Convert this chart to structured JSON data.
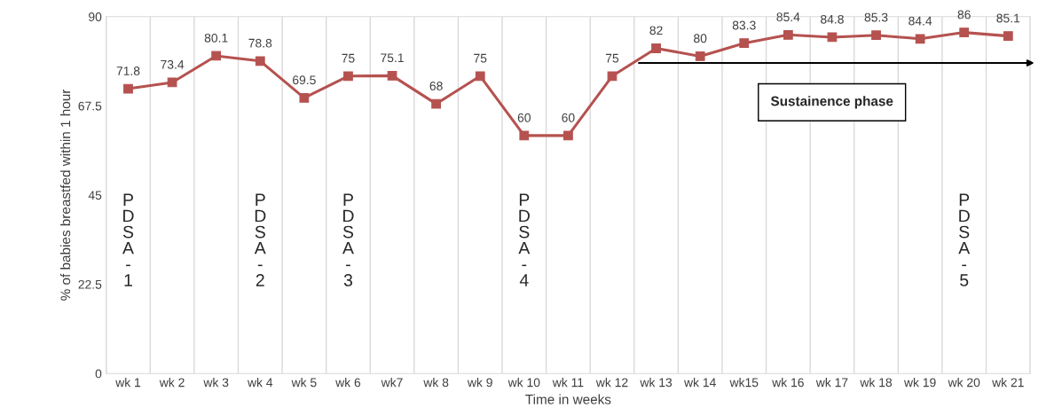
{
  "chart_data": {
    "type": "line",
    "xlabel": "Time in weeks",
    "ylabel": "% of babies breastfed within 1 hour",
    "categories": [
      "wk 1",
      "wk 2",
      "wk 3",
      "wk 4",
      "wk 5",
      "wk 6",
      "wk7",
      "wk 8",
      "wk 9",
      "wk 10",
      "wk 11",
      "wk 12",
      "wk 13",
      "wk 14",
      "wk15",
      "wk 16",
      "wk 17",
      "wk 18",
      "wk 19",
      "wk 20",
      "wk 21"
    ],
    "series": [
      {
        "color": "#b5524f",
        "values": [
          71.8,
          73.4,
          80.1,
          78.8,
          69.5,
          75,
          75.1,
          68,
          75,
          60,
          60,
          75,
          82,
          80,
          83.3,
          85.4,
          84.8,
          85.3,
          84.4,
          86,
          85.1
        ]
      }
    ],
    "ylim": [
      0,
      90
    ],
    "yticks": [
      0,
      22.5,
      45,
      67.5,
      90
    ],
    "grid": "x",
    "marker": "square",
    "line_style": "solid",
    "data_labels": true,
    "annotations": [
      "PDSA-1",
      "PDSA-2",
      "PDSA-3",
      "PDSA-4",
      "PDSA-5",
      "Sustainence phase"
    ]
  }
}
